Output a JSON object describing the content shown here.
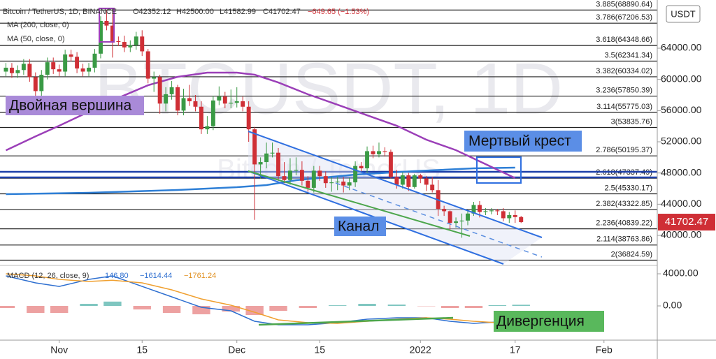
{
  "chart_data": [
    {
      "type": "candlestick",
      "watermark": "BTCUSDT, 1D",
      "watermark_sub": "Bitcoin / TetherUS",
      "header": {
        "symbol": "Bitcoin / TetherUS, 1D, BINANCE",
        "o": "O42352.12",
        "h": "H42500.00",
        "l": "L41582.99",
        "c": "C41702.47",
        "change": "−649.65 (−1.53%)"
      },
      "currency": "USDT",
      "up_color": "#3a9a45",
      "down_color": "#cf2f36",
      "xlim": [
        -10,
        101
      ],
      "ylim": [
        36600,
        70180
      ],
      "xticks": [
        {
          "value": 0,
          "label": "Nov"
        },
        {
          "value": 14,
          "label": "15"
        },
        {
          "value": 30,
          "label": "Dec"
        },
        {
          "value": 44,
          "label": "15"
        },
        {
          "value": 61,
          "label": "2022"
        },
        {
          "value": 77,
          "label": "17"
        },
        {
          "value": 92,
          "label": "Feb"
        }
      ],
      "yticks": [
        {
          "value": 40000,
          "label": "40000.00"
        },
        {
          "value": 44000,
          "label": "44000.00"
        },
        {
          "value": 48000,
          "label": "48000.00"
        },
        {
          "value": 52000,
          "label": "52000.00"
        },
        {
          "value": 56000,
          "label": "56000.00"
        },
        {
          "value": 60000,
          "label": "60000.00"
        },
        {
          "value": 64000,
          "label": "64000.00"
        }
      ],
      "x": [
        -9,
        -8,
        -7,
        -6,
        -5,
        -4,
        -3,
        -2,
        -1,
        0,
        1,
        2,
        3,
        4,
        5,
        6,
        7,
        8,
        9,
        10,
        11,
        12,
        13,
        14,
        15,
        16,
        17,
        18,
        19,
        20,
        21,
        22,
        23,
        24,
        25,
        26,
        27,
        28,
        29,
        30,
        31,
        32,
        33,
        34,
        35,
        36,
        37,
        38,
        39,
        40,
        41,
        42,
        43,
        44,
        45,
        46,
        47,
        48,
        49,
        50,
        51,
        52,
        53,
        54,
        55,
        56,
        57,
        58,
        59,
        60,
        61,
        62,
        63,
        64,
        65,
        66,
        67,
        68,
        69,
        70,
        71,
        72,
        73,
        74,
        75,
        76,
        77,
        78
      ],
      "ohlc": [
        [
          61000,
          62100,
          60400,
          61500
        ],
        [
          61500,
          62100,
          60200,
          60800
        ],
        [
          60800,
          61800,
          60200,
          61200
        ],
        [
          61200,
          62600,
          60600,
          62000
        ],
        [
          62000,
          62600,
          59700,
          60300
        ],
        [
          60300,
          60900,
          57900,
          58500
        ],
        [
          58500,
          61200,
          57900,
          60600
        ],
        [
          60600,
          62800,
          60000,
          62200
        ],
        [
          62200,
          62800,
          60700,
          61300
        ],
        [
          61300,
          61900,
          60400,
          61000
        ],
        [
          61000,
          63800,
          60400,
          63200
        ],
        [
          63200,
          63800,
          62300,
          62900
        ],
        [
          62900,
          63500,
          60800,
          61400
        ],
        [
          61400,
          62000,
          60400,
          61000
        ],
        [
          61000,
          62100,
          60400,
          61500
        ],
        [
          61500,
          63900,
          60900,
          63300
        ],
        [
          63300,
          68100,
          62700,
          67500
        ],
        [
          67500,
          68900,
          66300,
          66900
        ],
        [
          66900,
          69000,
          62800,
          64900
        ],
        [
          64900,
          65500,
          64300,
          64800
        ],
        [
          64800,
          65600,
          63500,
          64100
        ],
        [
          64100,
          65000,
          63500,
          64400
        ],
        [
          64400,
          66100,
          63800,
          65500
        ],
        [
          65500,
          66300,
          63000,
          63600
        ],
        [
          63600,
          63900,
          59500,
          60100
        ],
        [
          60100,
          61000,
          58400,
          60300
        ],
        [
          60300,
          60600,
          55600,
          56900
        ],
        [
          56900,
          59000,
          55900,
          58100
        ],
        [
          58100,
          59800,
          57400,
          59000
        ],
        [
          59000,
          59300,
          55400,
          56000
        ],
        [
          56000,
          58800,
          55400,
          57600
        ],
        [
          57600,
          59300,
          56600,
          57200
        ],
        [
          57200,
          58000,
          55900,
          56500
        ],
        [
          56500,
          57200,
          53000,
          53600
        ],
        [
          53600,
          55300,
          53000,
          54000
        ],
        [
          54000,
          57900,
          53500,
          57300
        ],
        [
          57300,
          59100,
          56700,
          57800
        ],
        [
          57800,
          58400,
          56300,
          56900
        ],
        [
          56900,
          58700,
          56300,
          57000
        ],
        [
          57000,
          59000,
          56400,
          57200
        ],
        [
          57200,
          57800,
          55900,
          56500
        ],
        [
          56500,
          57200,
          52000,
          53600
        ],
        [
          53600,
          53900,
          42000,
          49100
        ],
        [
          49100,
          50000,
          47300,
          49400
        ],
        [
          49400,
          51900,
          48600,
          50500
        ],
        [
          50500,
          51900,
          50000,
          50600
        ],
        [
          50600,
          51200,
          47000,
          47600
        ],
        [
          47600,
          49400,
          46700,
          47100
        ],
        [
          47100,
          49900,
          46500,
          48300
        ],
        [
          48300,
          50000,
          47700,
          48400
        ],
        [
          48400,
          49500,
          46400,
          47000
        ],
        [
          47000,
          47600,
          45600,
          46100
        ],
        [
          46100,
          48900,
          45500,
          48300
        ],
        [
          48300,
          48900,
          47000,
          47600
        ],
        [
          47600,
          48200,
          46100,
          46700
        ],
        [
          46700,
          47500,
          45600,
          46800
        ],
        [
          46800,
          47500,
          45800,
          46900
        ],
        [
          46900,
          47500,
          45500,
          46400
        ],
        [
          46400,
          47400,
          45800,
          46800
        ],
        [
          46800,
          49500,
          46200,
          48900
        ],
        [
          48900,
          49400,
          48000,
          48600
        ],
        [
          48600,
          51400,
          48000,
          50800
        ],
        [
          50800,
          51500,
          49900,
          50400
        ],
        [
          50400,
          51900,
          50000,
          50800
        ],
        [
          50800,
          51300,
          50100,
          50700
        ],
        [
          50700,
          51000,
          47300,
          47500
        ],
        [
          47500,
          48400,
          46000,
          46500
        ],
        [
          46500,
          48100,
          46000,
          47700
        ],
        [
          47700,
          48000,
          45700,
          46200
        ],
        [
          46200,
          47900,
          46000,
          47700
        ],
        [
          47700,
          47900,
          46700,
          47300
        ],
        [
          47300,
          47600,
          45700,
          46500
        ],
        [
          46500,
          47500,
          45500,
          45800
        ],
        [
          45800,
          47100,
          42500,
          43400
        ],
        [
          43400,
          43800,
          42500,
          43100
        ],
        [
          43100,
          43200,
          40700,
          41600
        ],
        [
          41600,
          42300,
          41000,
          41800
        ],
        [
          41800,
          42800,
          39700,
          41900
        ],
        [
          41900,
          43100,
          41300,
          42800
        ],
        [
          42800,
          44300,
          42500,
          43900
        ],
        [
          43900,
          44400,
          42300,
          43000
        ],
        [
          43000,
          43500,
          42600,
          43100
        ],
        [
          43100,
          43500,
          42700,
          43200
        ],
        [
          43200,
          43400,
          42600,
          43100
        ],
        [
          43100,
          43500,
          41800,
          42200
        ],
        [
          42200,
          43000,
          41600,
          42600
        ],
        [
          42600,
          43200,
          41600,
          42352.12
        ],
        [
          42352.12,
          42500,
          41582.99,
          41702.47
        ]
      ],
      "series": [
        {
          "name": "MA (200, close, 0)",
          "color": "#2e7fd6",
          "x": [
            -9,
            5,
            20,
            30,
            35,
            40,
            50,
            60,
            70,
            77
          ],
          "values": [
            45290,
            45460,
            45820,
            46180,
            46450,
            47080,
            47790,
            48240,
            48600,
            48690
          ]
        },
        {
          "name": "MA (50, close, 0)",
          "color": "#9b3fb8",
          "x": [
            -9,
            -4,
            0,
            5,
            10,
            15,
            20,
            25,
            30,
            33,
            37,
            42,
            47,
            52,
            57,
            62,
            67,
            72,
            77
          ],
          "values": [
            50900,
            52700,
            54060,
            55850,
            57640,
            59250,
            60330,
            60870,
            60870,
            60600,
            59610,
            58090,
            56750,
            55400,
            54060,
            52270,
            50930,
            49140,
            47350
          ]
        }
      ],
      "fib_levels": [
        {
          "value": 68890.64,
          "label": "3.885(68890.64)"
        },
        {
          "value": 67206.53,
          "label": "3.786(67206.53)"
        },
        {
          "value": 64348.66,
          "label": "3.618(64348.66)"
        },
        {
          "value": 62341.34,
          "label": "3.5(62341.34)"
        },
        {
          "value": 60334.02,
          "label": "3.382(60334.02)"
        },
        {
          "value": 57850.39,
          "label": "3.236(57850.39)"
        },
        {
          "value": 55775.03,
          "label": "3.114(55775.03)"
        },
        {
          "value": 53835.76,
          "label": "3(53835.76)"
        },
        {
          "value": 50195.37,
          "label": "2.786(50195.37)"
        },
        {
          "value": 47337.49,
          "label": "2.618(47337.49)"
        },
        {
          "value": 45330.17,
          "label": "2.5(45330.17)"
        },
        {
          "value": 43322.85,
          "label": "2.382(43322.85)"
        },
        {
          "value": 40839.22,
          "label": "2.236(40839.22)"
        },
        {
          "value": 38763.86,
          "label": "2.114(38763.86)"
        },
        {
          "value": 36824.59,
          "label": "2(36824.59)"
        }
      ],
      "annotations": [
        "Двойная вершина",
        "Мертвый крест",
        "Канал"
      ]
    },
    {
      "type": "macd",
      "title": "MACD (12, 26, close, 9)",
      "legend_values": [
        "146.80",
        "−1614.44",
        "−1761.24"
      ],
      "xlim": [
        -10,
        101
      ],
      "ylim": [
        -4260,
        4610
      ],
      "yticks": [
        {
          "value": 4000,
          "label": "4000.00"
        },
        {
          "value": 0,
          "label": "0.00"
        }
      ],
      "series": [
        {
          "name": "MACD",
          "color": "#2e6fd0",
          "x": [
            -9,
            -4,
            0,
            5,
            9,
            14,
            19,
            24,
            29,
            33,
            37,
            42,
            47,
            52,
            57,
            62,
            66,
            70,
            74,
            78
          ],
          "values": [
            3740,
            2870,
            2430,
            3300,
            3740,
            2430,
            1130,
            -170,
            -610,
            -1910,
            -2350,
            -2350,
            -2090,
            -1650,
            -1480,
            -1480,
            -1910,
            -2170,
            -2000,
            -1614.44
          ]
        },
        {
          "name": "Signal",
          "color": "#f0a030",
          "x": [
            -9,
            -4,
            0,
            5,
            9,
            14,
            19,
            24,
            29,
            33,
            37,
            42,
            47,
            52,
            57,
            62,
            66,
            70,
            74,
            78
          ],
          "values": [
            4000,
            3740,
            3300,
            3040,
            3200,
            2870,
            2000,
            870,
            90,
            -780,
            -1740,
            -2090,
            -2170,
            -1910,
            -1650,
            -1480,
            -1650,
            -1910,
            -2090,
            -1761.24
          ]
        }
      ],
      "histogram": {
        "x": [
          -9,
          -4,
          0,
          5,
          9,
          14,
          19,
          24,
          29,
          33,
          37,
          42,
          47,
          52,
          57,
          62,
          66,
          70,
          74,
          78
        ],
        "values": [
          -260,
          -870,
          -870,
          260,
          540,
          -440,
          -870,
          -1040,
          -700,
          -1130,
          -610,
          -260,
          80,
          260,
          170,
          -40,
          -260,
          -260,
          90,
          146.8
        ]
      },
      "annotations": [
        "Дивергенция"
      ]
    }
  ]
}
